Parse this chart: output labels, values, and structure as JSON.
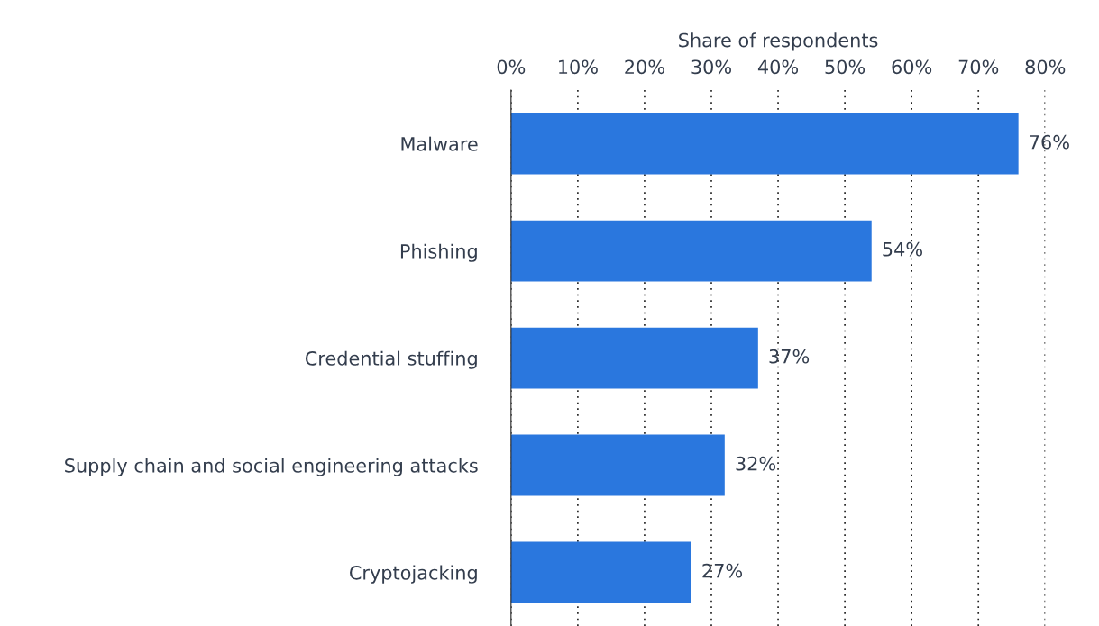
{
  "chart_data": {
    "type": "bar",
    "orientation": "horizontal",
    "xlabel": "Share of respondents",
    "categories": [
      "Malware",
      "Phishing",
      "Credential stuffing",
      "Supply chain and social engineering attacks",
      "Cryptojacking"
    ],
    "values": [
      76,
      54,
      37,
      32,
      27
    ],
    "value_labels": [
      "76%",
      "54%",
      "37%",
      "32%",
      "27%"
    ],
    "color": "#2a77de",
    "xlim": [
      0,
      80
    ],
    "xticks": [
      {
        "value": 0,
        "label": "0%"
      },
      {
        "value": 10,
        "label": "10%"
      },
      {
        "value": 20,
        "label": "20%"
      },
      {
        "value": 30,
        "label": "30%"
      },
      {
        "value": 40,
        "label": "40%"
      },
      {
        "value": 50,
        "label": "50%"
      },
      {
        "value": 60,
        "label": "60%"
      },
      {
        "value": 70,
        "label": "70%"
      },
      {
        "value": 80,
        "label": "80%"
      }
    ],
    "grid": "x",
    "legend": false
  }
}
